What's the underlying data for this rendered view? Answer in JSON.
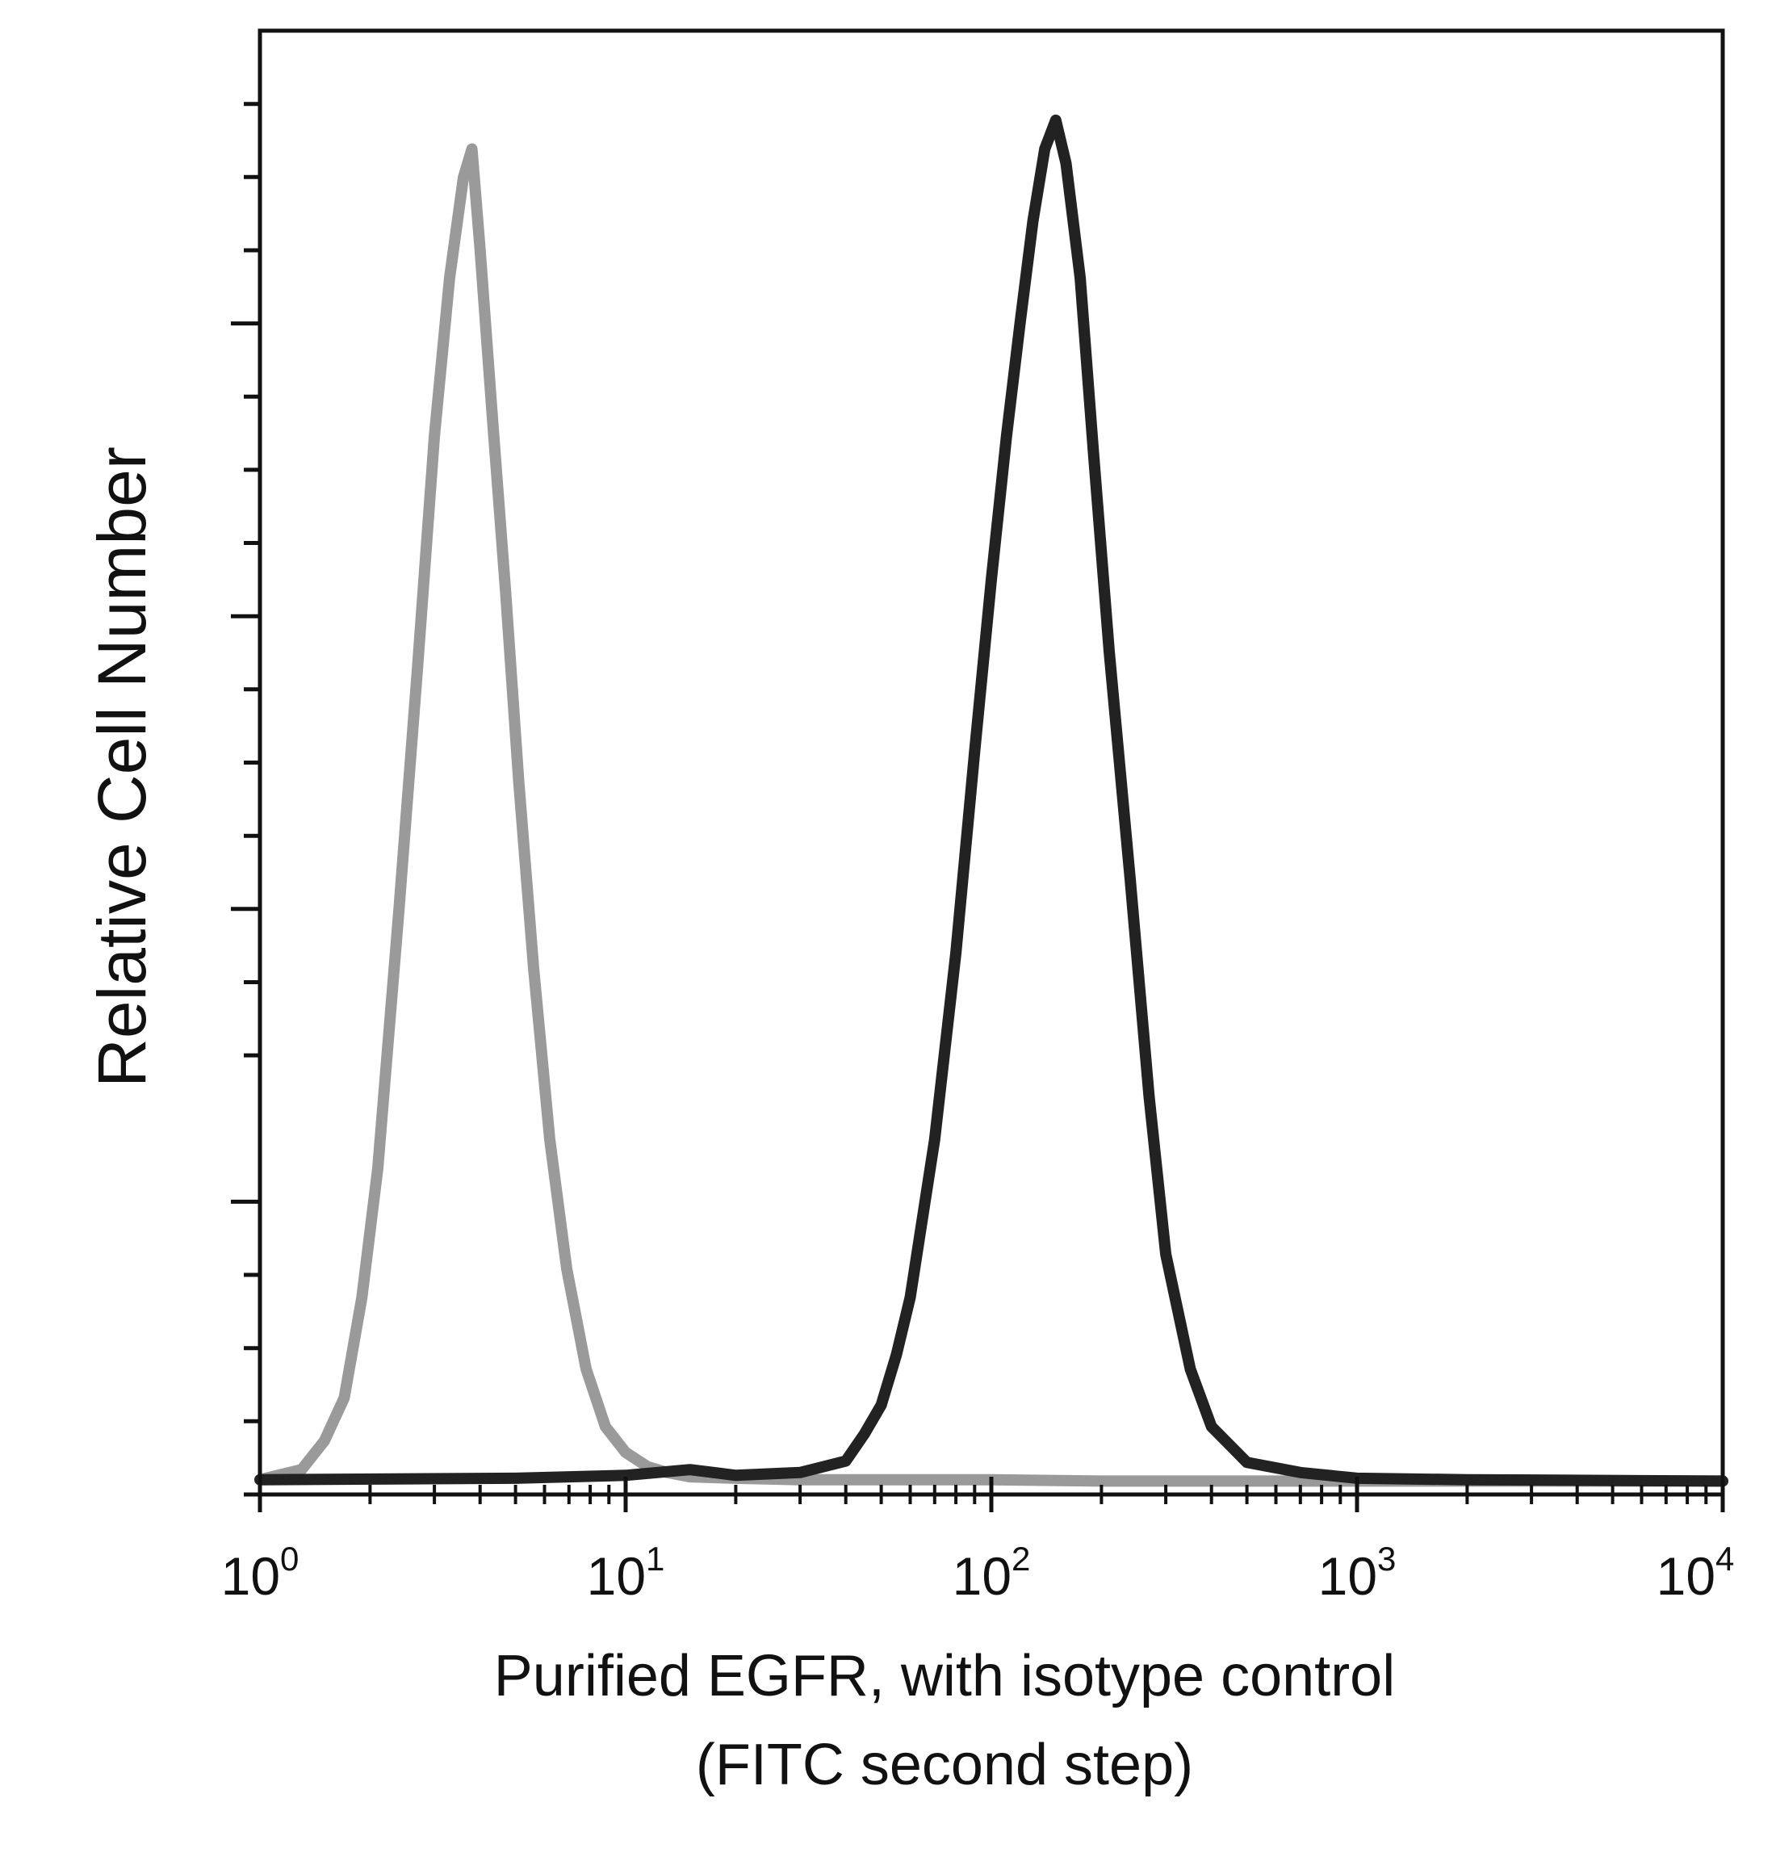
{
  "chart_data": {
    "type": "line",
    "title": "",
    "xlabel_line1": "Purified EGFR, with isotype control",
    "xlabel_line2": "(FITC second step)",
    "ylabel": "Relative Cell Number",
    "x_scale": "log",
    "xlim": [
      1,
      10000
    ],
    "ylim": [
      0,
      100
    ],
    "x_ticks": [
      {
        "base": "10",
        "exp": "0"
      },
      {
        "base": "10",
        "exp": "1"
      },
      {
        "base": "10",
        "exp": "2"
      },
      {
        "base": "10",
        "exp": "3"
      },
      {
        "base": "10",
        "exp": "4"
      }
    ],
    "grid": false,
    "legend": "none",
    "series": [
      {
        "color": "#9a9a9a",
        "x": [
          1.0,
          1.3,
          1.5,
          1.7,
          1.9,
          2.1,
          2.4,
          2.7,
          3.0,
          3.3,
          3.6,
          3.8,
          4.0,
          4.3,
          4.7,
          5.1,
          5.6,
          6.2,
          6.9,
          7.8,
          8.8,
          10.0,
          11.5,
          13.0,
          15.0,
          20.0,
          30.0,
          50.0,
          100.0,
          200.0,
          500.0,
          1000.0,
          10000.0
        ],
        "y": [
          0.3,
          1.0,
          3.0,
          6.0,
          13.0,
          22.0,
          40.0,
          57.0,
          73.0,
          84.0,
          91.0,
          93.0,
          86.0,
          75.0,
          62.0,
          49.0,
          36.0,
          24.0,
          15.0,
          8.0,
          4.0,
          2.2,
          1.2,
          0.8,
          0.5,
          0.4,
          0.3,
          0.3,
          0.3,
          0.2,
          0.2,
          0.2,
          0.2
        ]
      },
      {
        "color": "#222222",
        "x": [
          1.0,
          5.0,
          10.0,
          15.0,
          20.0,
          30.0,
          40.0,
          45.0,
          50.0,
          55.0,
          60.0,
          70.0,
          80.0,
          90.0,
          100.0,
          110.0,
          120.0,
          130.0,
          140.0,
          150.0,
          160.0,
          175.0,
          190.0,
          210.0,
          240.0,
          270.0,
          300.0,
          350.0,
          400.0,
          500.0,
          700.0,
          1000.0,
          2000.0,
          10000.0
        ],
        "y": [
          0.3,
          0.4,
          0.6,
          1.0,
          0.6,
          0.8,
          1.6,
          3.5,
          5.5,
          9.0,
          13.0,
          24.0,
          37.0,
          51.0,
          63.0,
          73.0,
          81.0,
          88.0,
          93.0,
          95.0,
          92.0,
          84.0,
          72.0,
          58.0,
          42.0,
          27.0,
          16.0,
          8.0,
          4.0,
          1.5,
          0.8,
          0.4,
          0.3,
          0.2
        ]
      }
    ]
  }
}
